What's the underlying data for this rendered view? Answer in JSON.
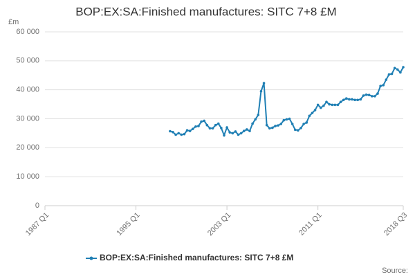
{
  "chart_data": {
    "type": "line",
    "title": "BOP:EX:SA:Finished manufactures: SITC 7+8 £M",
    "y_unit": "£m",
    "source": "Source:",
    "categories": [
      "1987 Q1",
      null,
      null,
      null,
      null,
      null,
      null,
      null,
      null,
      null,
      null,
      null,
      null,
      null,
      null,
      null,
      null,
      null,
      null,
      null,
      null,
      null,
      null,
      null,
      null,
      null,
      null,
      null,
      null,
      null,
      null,
      null,
      "1995 Q1",
      null,
      null,
      null,
      null,
      null,
      null,
      null,
      null,
      null,
      null,
      null,
      null,
      null,
      null,
      null,
      null,
      null,
      null,
      null,
      null,
      null,
      null,
      null,
      null,
      null,
      null,
      null,
      null,
      null,
      null,
      null,
      "2003 Q1",
      null,
      null,
      null,
      null,
      null,
      null,
      null,
      null,
      null,
      null,
      null,
      null,
      null,
      null,
      null,
      null,
      null,
      null,
      null,
      null,
      null,
      null,
      null,
      null,
      null,
      null,
      null,
      null,
      null,
      null,
      null,
      "2011 Q1",
      null,
      null,
      null,
      null,
      null,
      null,
      null,
      null,
      null,
      null,
      null,
      null,
      null,
      null,
      null,
      null,
      null,
      null,
      null,
      null,
      null,
      null,
      null,
      null,
      null,
      null,
      null,
      null,
      null,
      "2018 Q3"
    ],
    "series": [
      {
        "name": "BOP:EX:SA:Finished manufactures: SITC 7+8 £M",
        "color": "#1f7fb4",
        "values": [
          null,
          null,
          null,
          null,
          null,
          null,
          null,
          null,
          null,
          null,
          null,
          null,
          null,
          null,
          null,
          null,
          null,
          null,
          null,
          null,
          null,
          null,
          null,
          null,
          null,
          null,
          null,
          null,
          null,
          null,
          null,
          null,
          null,
          null,
          null,
          null,
          null,
          null,
          null,
          null,
          null,
          null,
          null,
          null,
          25700,
          25400,
          24500,
          25000,
          24500,
          24700,
          26000,
          25800,
          26500,
          27300,
          27500,
          29000,
          29300,
          27800,
          26700,
          26700,
          27800,
          28300,
          26800,
          24300,
          27000,
          25300,
          25000,
          25600,
          24500,
          25000,
          25800,
          26300,
          25800,
          28300,
          29800,
          31300,
          39500,
          42300,
          27800,
          26700,
          26900,
          27500,
          27700,
          28200,
          29500,
          29800,
          30000,
          28200,
          26200,
          26000,
          26800,
          28200,
          28700,
          31000,
          32000,
          33000,
          34800,
          33800,
          34500,
          35800,
          35000,
          34800,
          34800,
          34800,
          35800,
          36500,
          37000,
          36700,
          36700,
          36500,
          36500,
          36700,
          38000,
          38300,
          38200,
          37800,
          37800,
          38700,
          41300,
          41600,
          43500,
          45300,
          45500,
          47500,
          47000,
          46000,
          47800
        ]
      }
    ],
    "ylim": [
      0,
      60000
    ],
    "yticks": [
      0,
      {
        "value": 10000,
        "label": "10 000"
      },
      {
        "value": 20000,
        "label": "20 000"
      },
      {
        "value": 30000,
        "label": "30 000"
      },
      {
        "value": 40000,
        "label": "40 000"
      },
      {
        "value": 50000,
        "label": "50 000"
      },
      {
        "value": 60000,
        "label": "60 000"
      }
    ],
    "grid": true
  }
}
